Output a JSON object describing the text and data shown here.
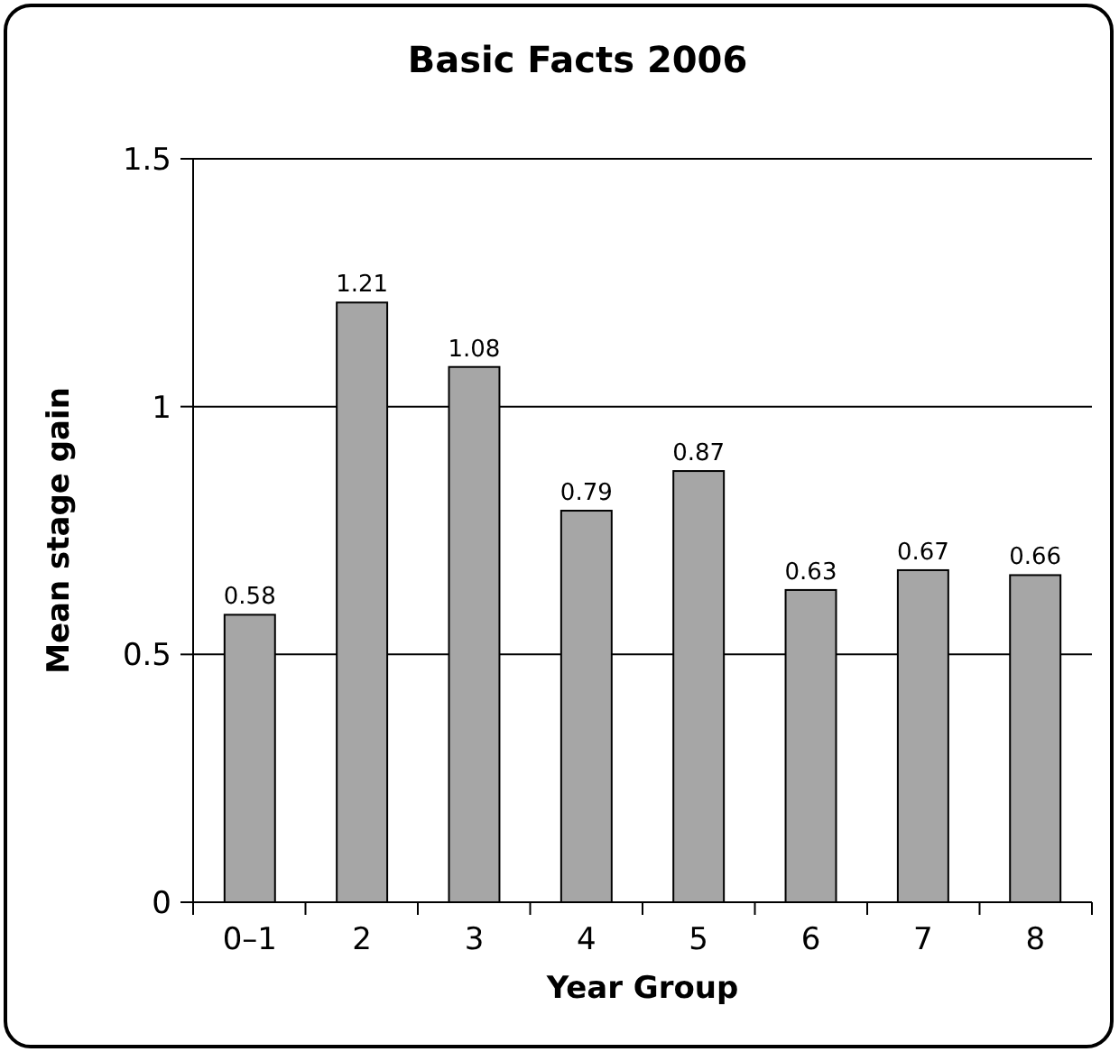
{
  "chart_data": {
    "type": "bar",
    "title": "Basic Facts 2006",
    "xlabel": "Year Group",
    "ylabel": "Mean stage gain",
    "categories": [
      "0–1",
      "2",
      "3",
      "4",
      "5",
      "6",
      "7",
      "8"
    ],
    "values": [
      0.58,
      1.21,
      1.08,
      0.79,
      0.87,
      0.63,
      0.67,
      0.66
    ],
    "color": "#a6a6a6",
    "ylim": [
      0,
      1.5
    ],
    "yticks": [
      0,
      0.5,
      1,
      1.5
    ],
    "grid": "y",
    "data_labels": true
  }
}
